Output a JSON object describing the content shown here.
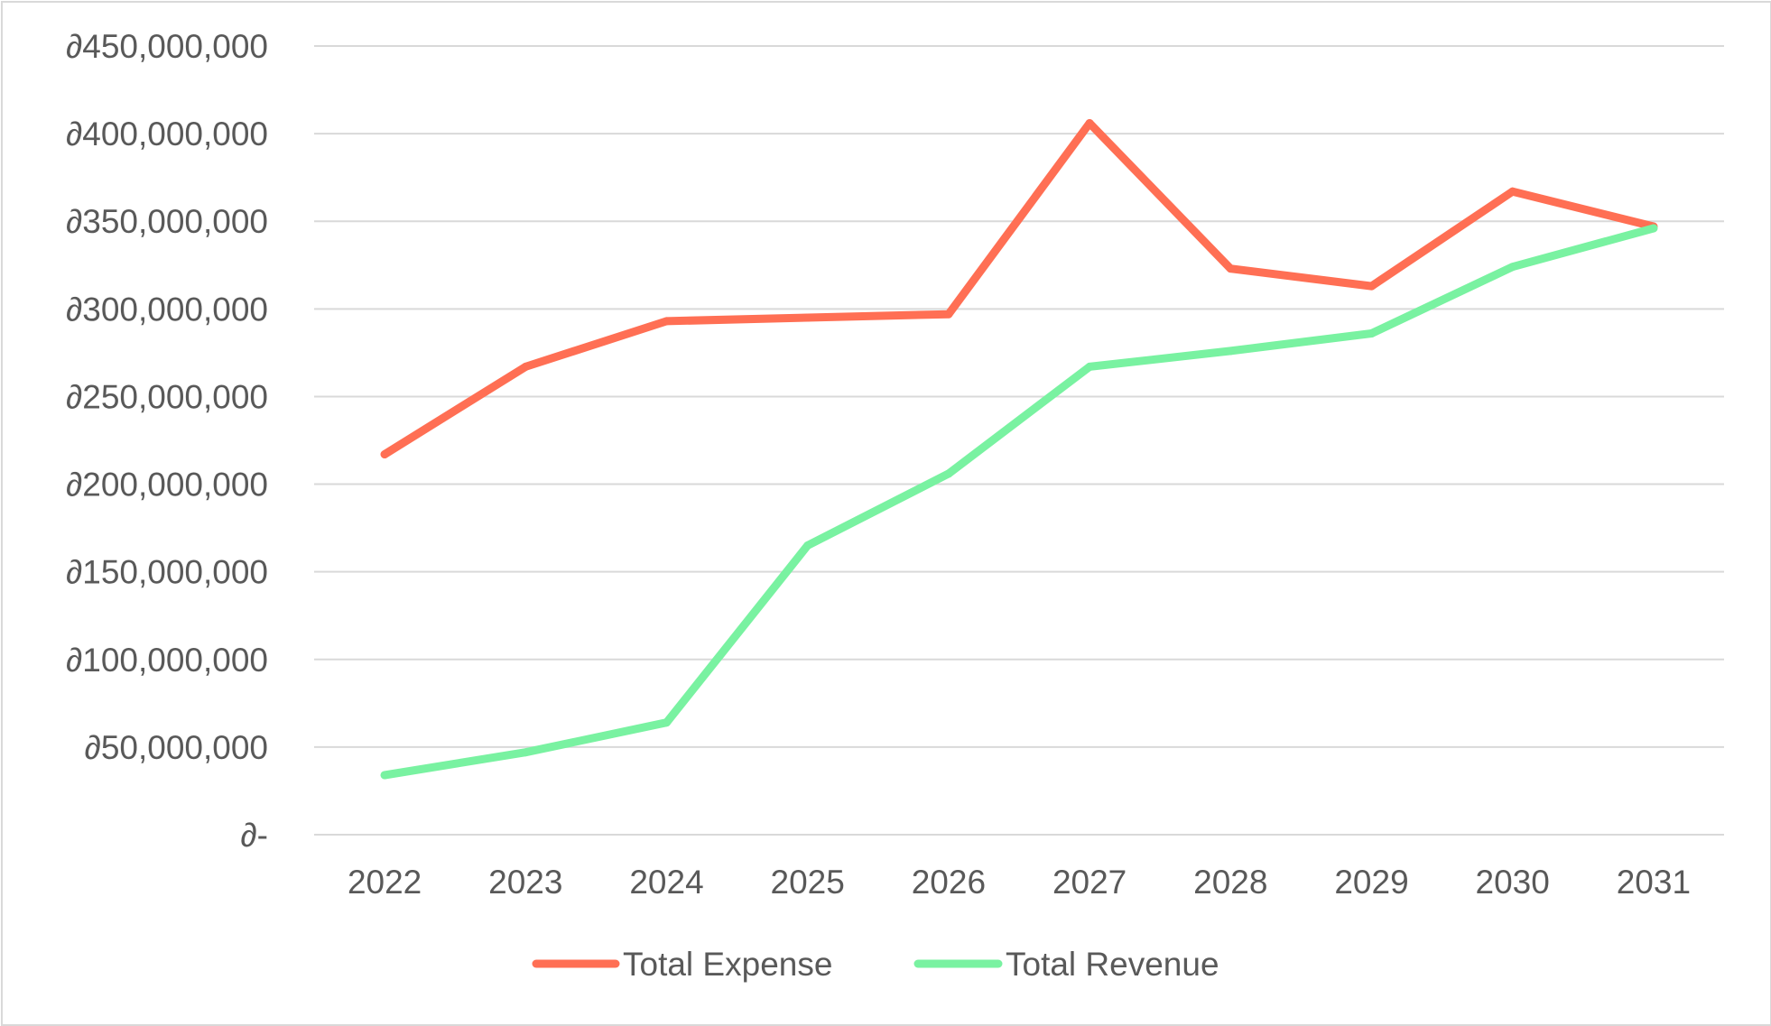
{
  "chart_data": {
    "type": "line",
    "title": "",
    "xlabel": "",
    "ylabel": "",
    "categories": [
      "2022",
      "2023",
      "2024",
      "2025",
      "2026",
      "2027",
      "2028",
      "2029",
      "2030",
      "2031"
    ],
    "ylim": [
      0,
      450000000
    ],
    "yticks": [
      0,
      50000000,
      100000000,
      150000000,
      200000000,
      250000000,
      300000000,
      350000000,
      400000000,
      450000000
    ],
    "ytick_labels": [
      "∂-",
      "∂50,000,000",
      "∂100,000,000",
      "∂150,000,000",
      "∂200,000,000",
      "∂250,000,000",
      "∂300,000,000",
      "∂350,000,000",
      "∂400,000,000",
      "∂450,000,000"
    ],
    "grid": "horizontal",
    "legend_position": "bottom",
    "series": [
      {
        "name": "Total Expense",
        "color": "#ff6f54",
        "values": [
          217000000,
          267000000,
          293000000,
          295000000,
          297000000,
          406000000,
          323000000,
          313000000,
          367000000,
          347000000
        ]
      },
      {
        "name": "Total Revenue",
        "color": "#79f2a1",
        "values": [
          34000000,
          47000000,
          64000000,
          165000000,
          206000000,
          267000000,
          276000000,
          286000000,
          324000000,
          346000000
        ]
      }
    ]
  }
}
